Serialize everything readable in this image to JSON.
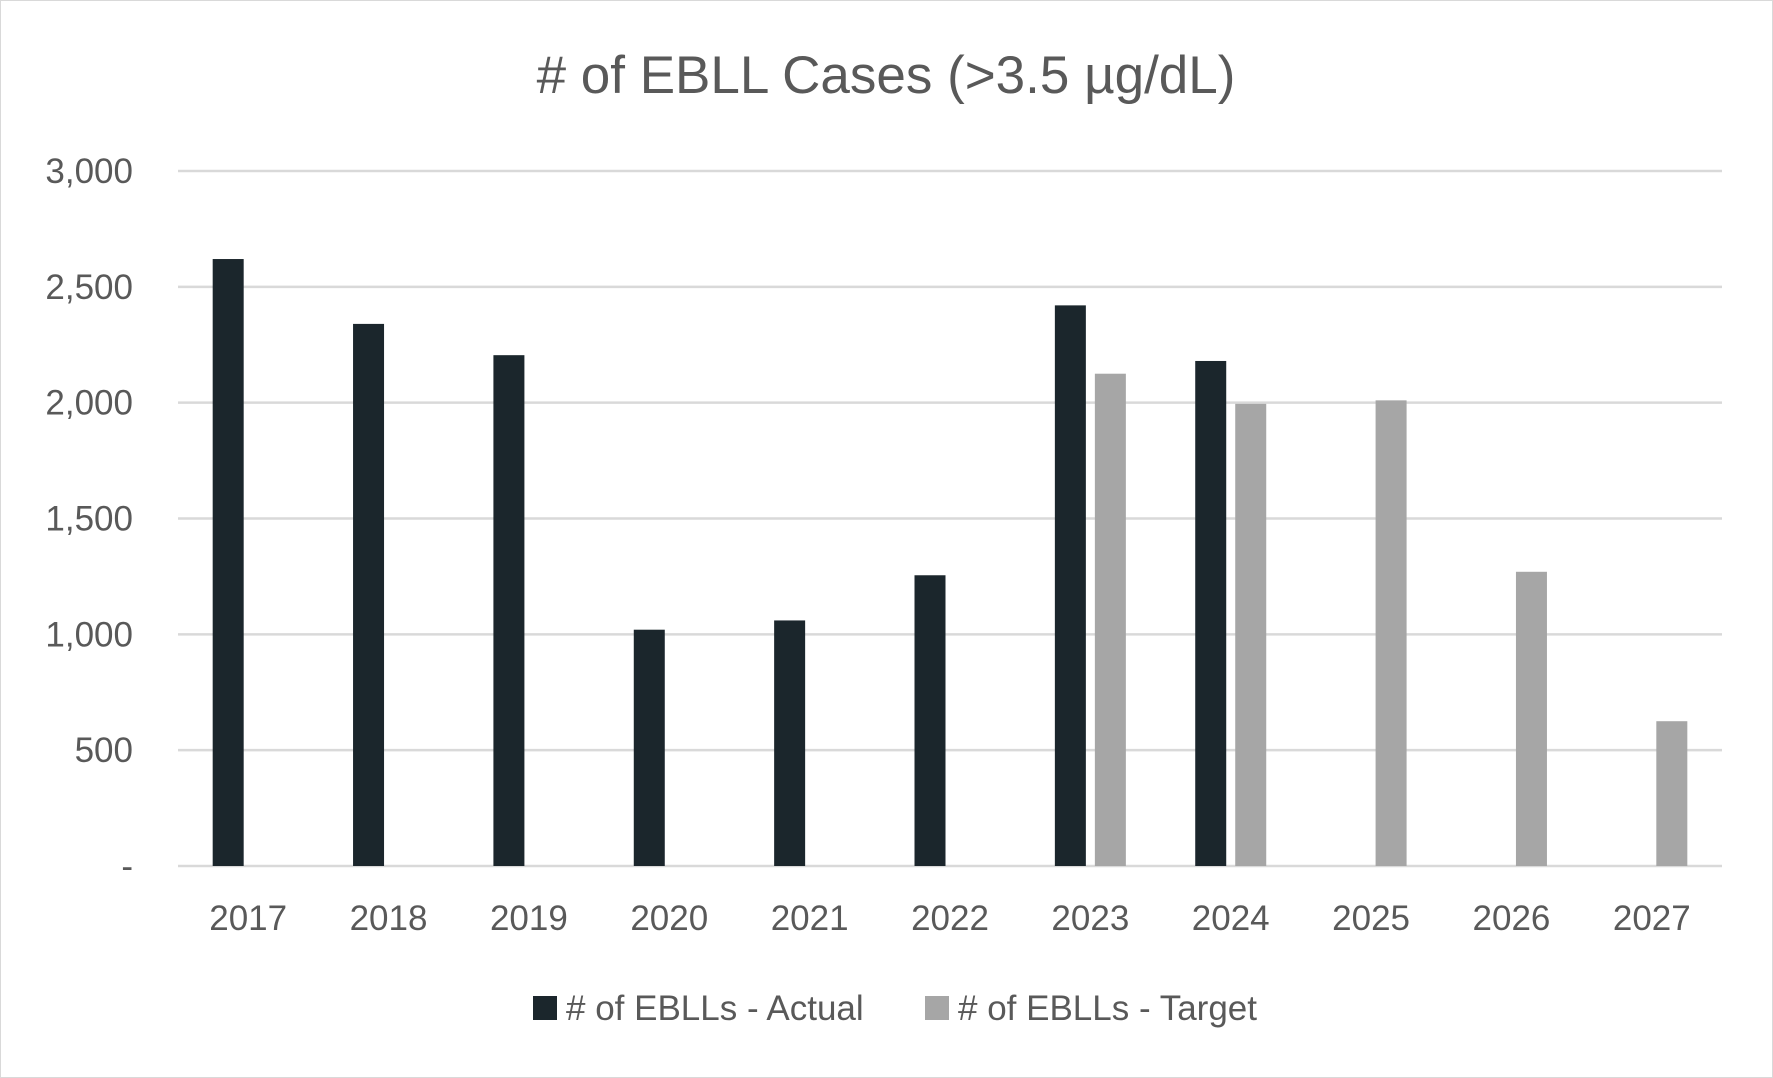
{
  "chart_data": {
    "type": "bar",
    "title": "# of EBLL Cases (>3.5 µg/dL)",
    "xlabel": "",
    "ylabel": "",
    "categories": [
      "2017",
      "2018",
      "2019",
      "2020",
      "2021",
      "2022",
      "2023",
      "2024",
      "2025",
      "2026",
      "2027"
    ],
    "series": [
      {
        "name": "# of EBLLs - Actual",
        "color": "#1b262c",
        "values": [
          2620,
          2340,
          2205,
          1020,
          1060,
          1255,
          2420,
          2180,
          null,
          null,
          null
        ]
      },
      {
        "name": "# of EBLLs - Target",
        "color": "#a6a6a6",
        "values": [
          null,
          null,
          null,
          null,
          null,
          null,
          2125,
          1995,
          2010,
          1270,
          625
        ]
      }
    ],
    "ylim": [
      0,
      3000
    ],
    "yticks": [
      0,
      500,
      1000,
      1500,
      2000,
      2500,
      3000
    ],
    "ytick_labels": [
      "-",
      "500",
      "1,000",
      "1,500",
      "2,000",
      "2,500",
      "3,000"
    ],
    "grid": true,
    "legend_position": "bottom"
  }
}
